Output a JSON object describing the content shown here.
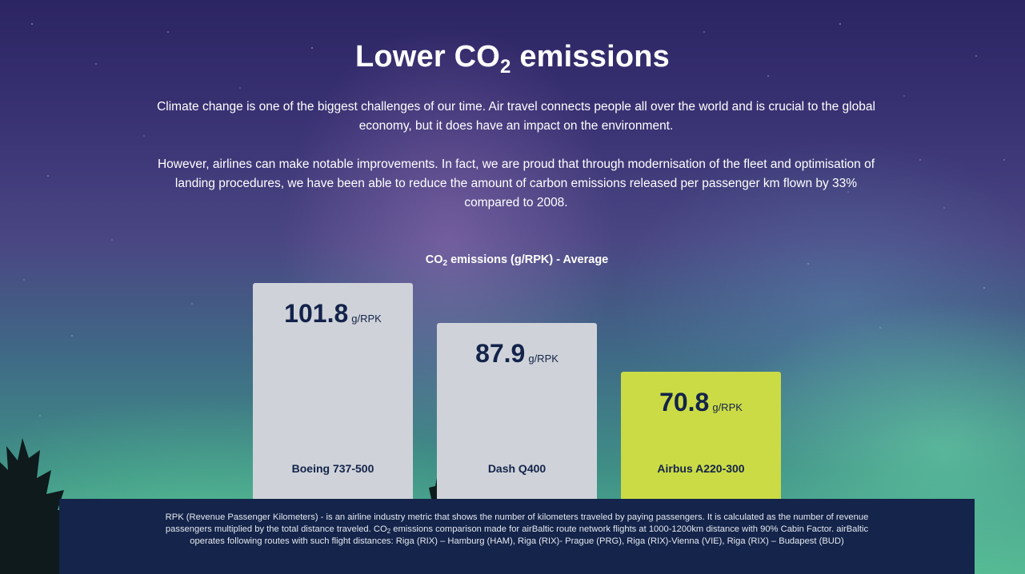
{
  "header": {
    "title_main": "Lower CO",
    "title_sub": "2",
    "title_end": " emissions",
    "paragraphs": [
      "Climate change is one of the biggest challenges of our time. Air travel connects people all over the world and is crucial to the global economy, but it does have an impact on the environment.",
      "However, airlines can make notable improvements. In fact, we are proud that through modernisation of the fleet and optimisation of landing procedures, we have been able to reduce the amount of carbon emissions released per passenger km flown by 33% compared to 2008."
    ]
  },
  "chart_data": {
    "type": "bar",
    "title_main": "CO",
    "title_sub": "2",
    "title_end": " emissions (g/RPK) - Average",
    "unit": "g/RPK",
    "categories": [
      "Boeing 737-500",
      "Dash Q400",
      "Airbus A220-300"
    ],
    "values": [
      101.8,
      87.9,
      70.8
    ],
    "colors": [
      "#cfd3d9",
      "#cfd3d9",
      "#cbdb45"
    ],
    "ylim": [
      0,
      101.8
    ]
  },
  "footnote": {
    "part1": "RPK (Revenue Passenger Kilometers) - is an airline industry metric that shows the number of kilometers traveled by paying passengers. It is calculated as the number of revenue passengers multiplied by the total distance traveled. CO",
    "sub": "2",
    "part2": " emissions comparison made for airBaltic route network flights at 1000-1200km distance with 90% Cabin Factor. airBaltic operates following routes with such flight distances: Riga (RIX) – Hamburg (HAM), Riga (RIX)- Prague (PRG), Riga (RIX)-Vienna (VIE), Riga (RIX) – Budapest (BUD)"
  }
}
